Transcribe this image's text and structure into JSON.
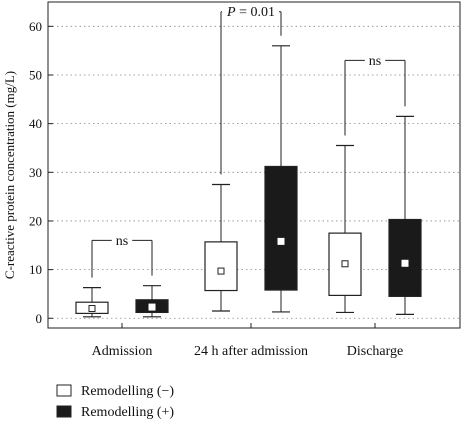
{
  "chart_data": {
    "type": "box",
    "title": "",
    "xlabel": "",
    "ylabel": "C-reactive protein concentration (mg/L)",
    "ylim": [
      -2,
      65
    ],
    "yticks": [
      0,
      10,
      20,
      30,
      40,
      50,
      60
    ],
    "ytick_labels": [
      "0",
      "10",
      "20",
      "30",
      "40",
      "50",
      "60"
    ],
    "grid": "dotted horizontal at major ticks",
    "categories": [
      "Admission",
      "24 h after admission",
      "Discharge"
    ],
    "series": [
      {
        "name": "Remodelling (−)",
        "fill": "#ffffff",
        "boxes": [
          {
            "min": 0.3,
            "q1": 1.0,
            "median": 2.0,
            "q3": 3.3,
            "max": 6.3
          },
          {
            "min": 1.5,
            "q1": 5.7,
            "median": 9.7,
            "q3": 15.7,
            "max": 27.5
          },
          {
            "min": 1.2,
            "q1": 4.7,
            "median": 11.2,
            "q3": 17.5,
            "max": 35.5
          }
        ]
      },
      {
        "name": "Remodelling (+)",
        "fill": "#1a1a1a",
        "boxes": [
          {
            "min": 0.3,
            "q1": 1.2,
            "median": 2.3,
            "q3": 3.8,
            "max": 6.7
          },
          {
            "min": 1.3,
            "q1": 5.8,
            "median": 15.8,
            "q3": 31.2,
            "max": 56.0
          },
          {
            "min": 0.8,
            "q1": 4.5,
            "median": 11.3,
            "q3": 20.3,
            "max": 41.5
          }
        ]
      }
    ],
    "annotations": [
      {
        "category_index": 0,
        "text": "ns",
        "y_bar": 16.0,
        "y_drop": 10.0
      },
      {
        "category_index": 1,
        "text": "P = 0.01",
        "y_bar": 63.0,
        "y_drop": 62.0
      },
      {
        "category_index": 2,
        "text": "ns",
        "y_bar": 53.0,
        "y_drop": 45.0
      }
    ],
    "legend": {
      "placement": "bottom-left",
      "entries": [
        {
          "label": "Remodelling (−)",
          "fill": "#ffffff"
        },
        {
          "label": "Remodelling (+)",
          "fill": "#1a1a1a"
        }
      ]
    }
  }
}
